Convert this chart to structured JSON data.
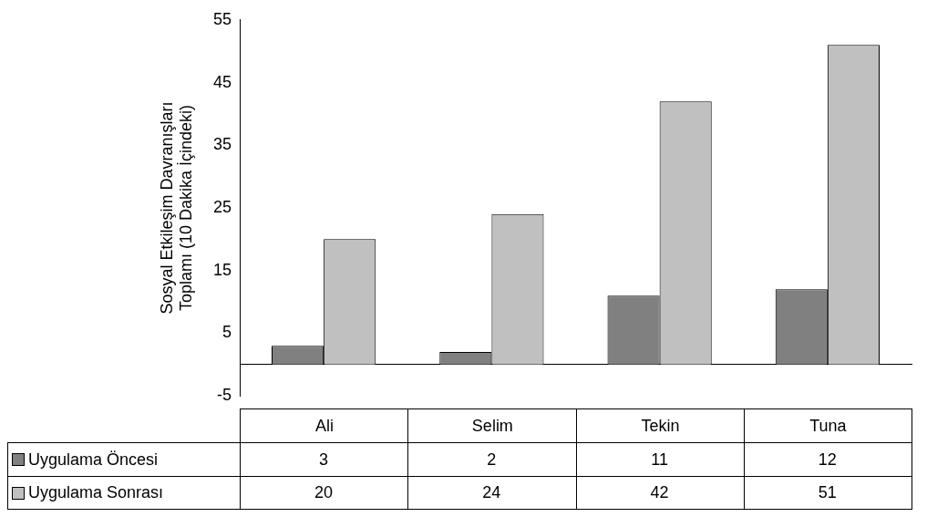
{
  "chart_data": {
    "type": "bar",
    "ylabel": "Sosyal Etkileşim Davranışları\nToplamı (10 Dakika İçindeki)",
    "categories": [
      "Ali",
      "Selim",
      "Tekin",
      "Tuna"
    ],
    "series": [
      {
        "name": "Uygulama Öncesi",
        "color": "#808080",
        "values": [
          3,
          2,
          11,
          12
        ]
      },
      {
        "name": "Uygulama Sonrası",
        "color": "#c0c0c0",
        "values": [
          20,
          24,
          42,
          51
        ]
      }
    ],
    "ylim": [
      -5,
      55
    ],
    "yticks": [
      -5,
      5,
      15,
      25,
      35,
      45,
      55
    ],
    "grid": false,
    "legend": "bottom",
    "data_labels": true
  }
}
